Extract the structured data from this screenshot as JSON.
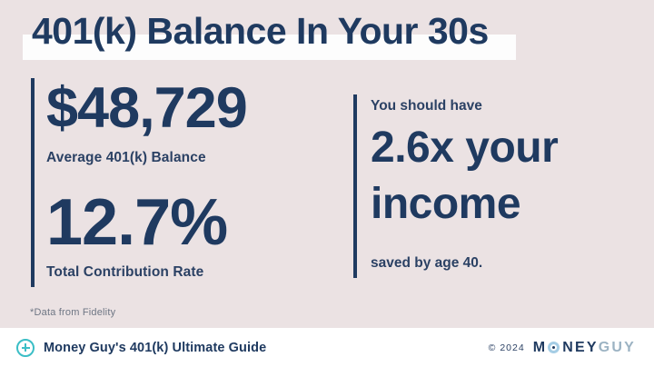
{
  "title": "401(k) Balance In Your 30s",
  "stats_left": {
    "balance_value": "$48,729",
    "balance_label": "Average 401(k) Balance",
    "rate_value": "12.7%",
    "rate_label": "Total Contribution Rate"
  },
  "stats_right": {
    "intro": "You should have",
    "headline": "2.6x your income",
    "caption": "saved by age 40."
  },
  "footnote": "*Data from Fidelity",
  "footer": {
    "guide_label": "Money Guy's 401(k) Ultimate Guide",
    "copyright": "© 2024",
    "brand": {
      "part1": "M",
      "part2": "NEY",
      "part3": "GUY"
    }
  },
  "icons": {
    "footer_badge": "plus-circle-icon",
    "brand_o": "target-o-icon"
  },
  "colors": {
    "background_pink": "#ebe2e3",
    "navy": "#1f3a60",
    "highlight_band": "#fdfdfd",
    "teal": "#3bbec6",
    "brand_light_blue": "#a5cde5",
    "brand_gray_blue": "#9cb3c3",
    "footnote_gray": "#6e7684"
  }
}
